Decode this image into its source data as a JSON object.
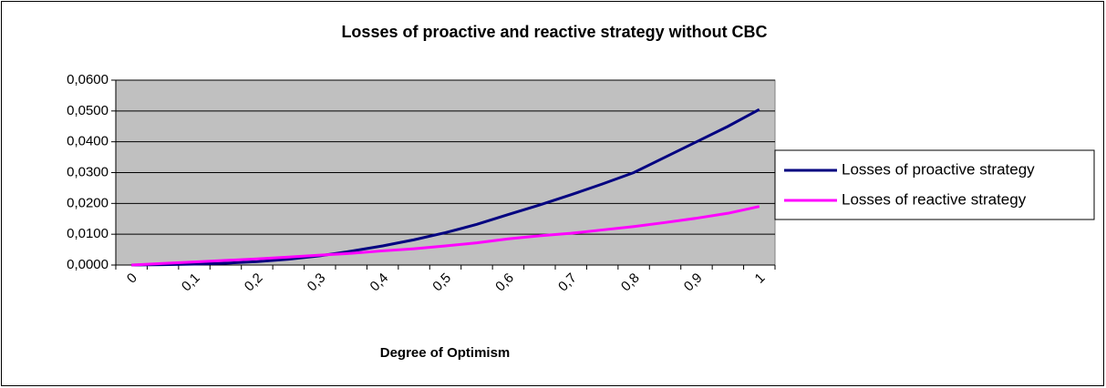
{
  "chart_data": {
    "type": "line",
    "title": "Losses of proactive and reactive strategy without CBC",
    "x_label": "Degree of Optimism",
    "categories": [
      "0",
      null,
      "0,1",
      null,
      "0,2",
      null,
      "0,3",
      null,
      "0,4",
      null,
      "0,5",
      null,
      "0,6",
      null,
      "0,7",
      null,
      "0,8",
      null,
      "0,9",
      null,
      "1"
    ],
    "series": [
      {
        "name": "Losses of proactive strategy",
        "color": "#000080",
        "values": [
          0,
          0.0001,
          0.0003,
          0.0006,
          0.0011,
          0.0019,
          0.003,
          0.0045,
          0.0062,
          0.0082,
          0.0105,
          0.0132,
          0.0164,
          0.0195,
          0.0228,
          0.0263,
          0.03,
          0.035,
          0.04,
          0.045,
          0.0505
        ]
      },
      {
        "name": "Losses of reactive strategy",
        "color": "#ff00ff",
        "values": [
          0,
          0.0005,
          0.001,
          0.0015,
          0.002,
          0.0026,
          0.0032,
          0.0038,
          0.0046,
          0.0053,
          0.0062,
          0.0072,
          0.0085,
          0.0095,
          0.0103,
          0.0114,
          0.0125,
          0.0138,
          0.0152,
          0.0168,
          0.019
        ]
      }
    ],
    "ylim": [
      0,
      0.06
    ],
    "yticks": [
      {
        "value": 0,
        "label": "0,0000"
      },
      {
        "value": 0.01,
        "label": "0,0100"
      },
      {
        "value": 0.02,
        "label": "0,0200"
      },
      {
        "value": 0.03,
        "label": "0,0300"
      },
      {
        "value": 0.04,
        "label": "0,0400"
      },
      {
        "value": 0.05,
        "label": "0,0500"
      },
      {
        "value": 0.06,
        "label": "0,0600"
      }
    ],
    "grid": true,
    "legend": "right"
  }
}
